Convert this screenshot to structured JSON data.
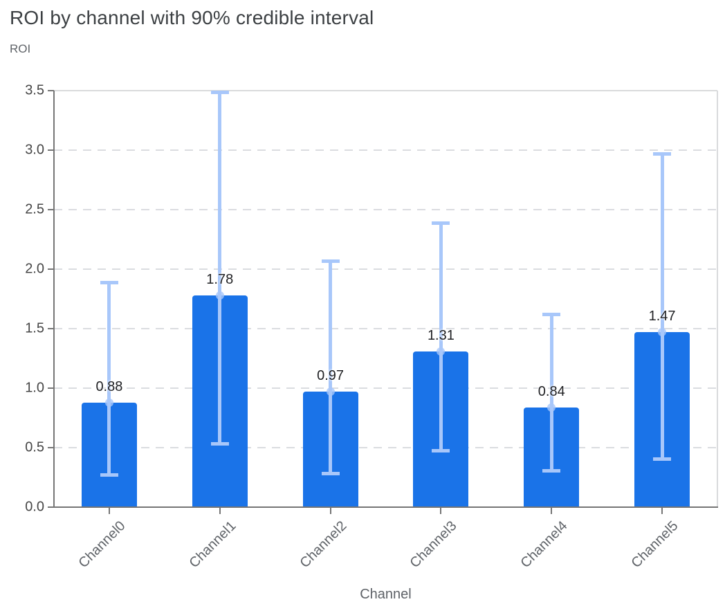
{
  "chart_data": {
    "type": "bar",
    "title": "ROI by channel with 90% credible interval",
    "xlabel": "Channel",
    "ylabel": "ROI",
    "categories": [
      "Channel0",
      "Channel1",
      "Channel2",
      "Channel3",
      "Channel4",
      "Channel5"
    ],
    "values": [
      0.88,
      1.78,
      0.97,
      1.31,
      0.84,
      1.47
    ],
    "value_labels": [
      "0.88",
      "1.78",
      "0.97",
      "1.31",
      "0.84",
      "1.47"
    ],
    "ci_lower": [
      0.27,
      0.53,
      0.28,
      0.47,
      0.3,
      0.4
    ],
    "ci_upper": [
      1.89,
      3.49,
      2.07,
      2.39,
      1.62,
      2.97
    ],
    "yticks": [
      0.0,
      0.5,
      1.0,
      1.5,
      2.0,
      2.5,
      3.0,
      3.5
    ],
    "ytick_labels": [
      "0.0",
      "0.5",
      "1.0",
      "1.5",
      "2.0",
      "2.5",
      "3.0",
      "3.5"
    ],
    "ylim": [
      0,
      3.5
    ],
    "grid": "dashed-horizontal",
    "legend": "none",
    "colors": {
      "bar": "#1a73e8",
      "error_bar": "#a8c7fa",
      "error_dot": "rgba(168,199,250,0.8)",
      "grid": "#dadce0",
      "border": "#d9dadc",
      "axis": "#757575",
      "title_text": "#3c4043",
      "axis_title_text": "#5f6368",
      "tick_text": "#464646",
      "value_label_text": "#202124"
    }
  }
}
